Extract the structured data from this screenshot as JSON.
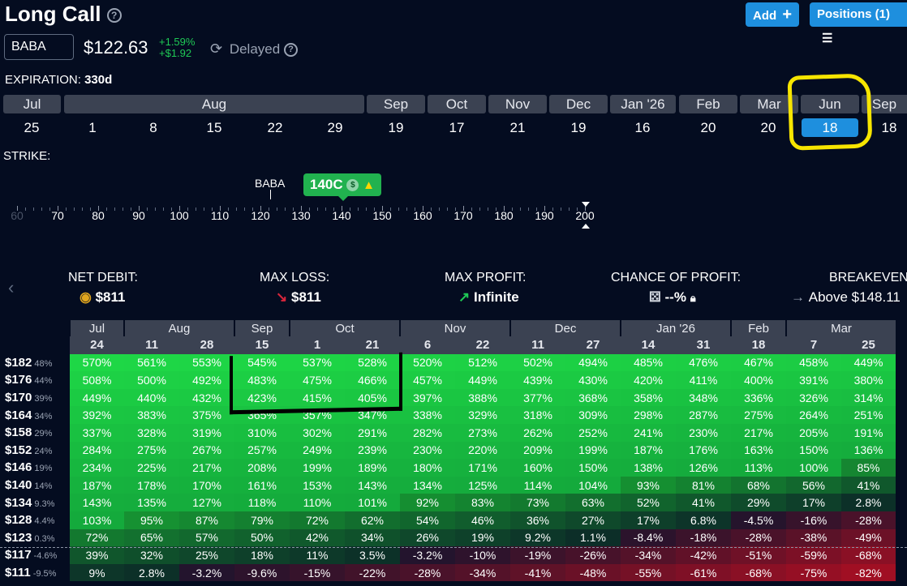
{
  "header": {
    "title": "Long Call",
    "help": "?",
    "add_label": "Add",
    "positions_label": "Positions (1)"
  },
  "quote": {
    "ticker": "BABA",
    "price": "$122.63",
    "change_pct": "+1.59%",
    "change_abs": "+$1.92",
    "delayed_label": "Delayed"
  },
  "expiration": {
    "label": "EXPIRATION:",
    "value": "330d",
    "months": [
      "Jul",
      "Aug",
      "Sep",
      "Oct",
      "Nov",
      "Dec",
      "Jan '26",
      "Feb",
      "Mar",
      "Jun",
      "Sep"
    ],
    "days": [
      "25",
      "1",
      "8",
      "15",
      "22",
      "29",
      "19",
      "17",
      "21",
      "19",
      "16",
      "20",
      "20",
      "18",
      "18"
    ],
    "selected_day": "18"
  },
  "strike": {
    "label": "STRIKE:",
    "underlying_marker": "BABA",
    "selected_label": "140C",
    "scale": [
      "60",
      "70",
      "80",
      "90",
      "100",
      "110",
      "120",
      "130",
      "140",
      "150",
      "160",
      "170",
      "180",
      "190",
      "200"
    ]
  },
  "stats": {
    "net_debit_label": "NET DEBIT:",
    "net_debit": "$811",
    "max_loss_label": "MAX LOSS:",
    "max_loss": "$811",
    "max_profit_label": "MAX PROFIT:",
    "max_profit": "Infinite",
    "chance_label": "CHANCE OF PROFIT:",
    "chance": "--%",
    "breakeven_label": "BREAKEVEN",
    "breakeven": "Above $148.11"
  },
  "grid": {
    "month_groups": [
      {
        "label": "Jul",
        "span": 1
      },
      {
        "label": "Aug",
        "span": 2
      },
      {
        "label": "Sep",
        "span": 1
      },
      {
        "label": "Oct",
        "span": 2
      },
      {
        "label": "Nov",
        "span": 2
      },
      {
        "label": "Dec",
        "span": 2
      },
      {
        "label": "Jan '26",
        "span": 2
      },
      {
        "label": "Feb",
        "span": 1
      },
      {
        "label": "Mar",
        "span": 2
      }
    ],
    "days": [
      "24",
      "11",
      "28",
      "15",
      "1",
      "21",
      "6",
      "22",
      "11",
      "27",
      "14",
      "31",
      "18",
      "7",
      "25"
    ],
    "rows": [
      {
        "price": "$182",
        "pct": "48%",
        "cells": [
          "570%",
          "561%",
          "553%",
          "545%",
          "537%",
          "528%",
          "520%",
          "512%",
          "502%",
          "494%",
          "485%",
          "476%",
          "467%",
          "458%",
          "449%"
        ]
      },
      {
        "price": "$176",
        "pct": "44%",
        "cells": [
          "508%",
          "500%",
          "492%",
          "483%",
          "475%",
          "466%",
          "457%",
          "449%",
          "439%",
          "430%",
          "420%",
          "411%",
          "400%",
          "391%",
          "380%"
        ]
      },
      {
        "price": "$170",
        "pct": "39%",
        "cells": [
          "449%",
          "440%",
          "432%",
          "423%",
          "415%",
          "405%",
          "397%",
          "388%",
          "377%",
          "368%",
          "358%",
          "348%",
          "336%",
          "326%",
          "314%"
        ]
      },
      {
        "price": "$164",
        "pct": "34%",
        "cells": [
          "392%",
          "383%",
          "375%",
          "365%",
          "357%",
          "347%",
          "338%",
          "329%",
          "318%",
          "309%",
          "298%",
          "287%",
          "275%",
          "264%",
          "251%"
        ]
      },
      {
        "price": "$158",
        "pct": "29%",
        "cells": [
          "337%",
          "328%",
          "319%",
          "310%",
          "302%",
          "291%",
          "282%",
          "273%",
          "262%",
          "252%",
          "241%",
          "230%",
          "217%",
          "205%",
          "191%"
        ]
      },
      {
        "price": "$152",
        "pct": "24%",
        "cells": [
          "284%",
          "275%",
          "267%",
          "257%",
          "249%",
          "239%",
          "230%",
          "220%",
          "209%",
          "199%",
          "187%",
          "176%",
          "163%",
          "150%",
          "136%"
        ]
      },
      {
        "price": "$146",
        "pct": "19%",
        "cells": [
          "234%",
          "225%",
          "217%",
          "208%",
          "199%",
          "189%",
          "180%",
          "171%",
          "160%",
          "150%",
          "138%",
          "126%",
          "113%",
          "100%",
          "85%"
        ]
      },
      {
        "price": "$140",
        "pct": "14%",
        "cells": [
          "187%",
          "178%",
          "170%",
          "161%",
          "153%",
          "143%",
          "134%",
          "125%",
          "114%",
          "104%",
          "93%",
          "81%",
          "68%",
          "56%",
          "41%"
        ]
      },
      {
        "price": "$134",
        "pct": "9.3%",
        "cells": [
          "143%",
          "135%",
          "127%",
          "118%",
          "110%",
          "101%",
          "92%",
          "83%",
          "73%",
          "63%",
          "52%",
          "41%",
          "29%",
          "17%",
          "2.8%"
        ]
      },
      {
        "price": "$128",
        "pct": "4.4%",
        "cells": [
          "103%",
          "95%",
          "87%",
          "79%",
          "72%",
          "62%",
          "54%",
          "46%",
          "36%",
          "27%",
          "17%",
          "6.8%",
          "-4.5%",
          "-16%",
          "-28%"
        ]
      },
      {
        "price": "$123",
        "pct": "0.3%",
        "cells": [
          "72%",
          "65%",
          "57%",
          "50%",
          "42%",
          "34%",
          "26%",
          "19%",
          "9.2%",
          "1.1%",
          "-8.4%",
          "-18%",
          "-28%",
          "-38%",
          "-49%"
        ]
      },
      {
        "price": "$117",
        "pct": "-4.6%",
        "cells": [
          "39%",
          "32%",
          "25%",
          "18%",
          "11%",
          "3.5%",
          "-3.2%",
          "-10%",
          "-19%",
          "-26%",
          "-34%",
          "-42%",
          "-51%",
          "-59%",
          "-68%"
        ]
      },
      {
        "price": "$111",
        "pct": "-9.5%",
        "cells": [
          "9%",
          "2.8%",
          "-3.2%",
          "-9.6%",
          "-15%",
          "-22%",
          "-28%",
          "-34%",
          "-41%",
          "-48%",
          "-55%",
          "-61%",
          "-68%",
          "-75%",
          "-82%"
        ]
      }
    ]
  },
  "colors": {
    "accent": "#1e8fde",
    "positive": "#1fc955",
    "negative": "#c0213a",
    "annotation_yellow": "#f7e500"
  }
}
